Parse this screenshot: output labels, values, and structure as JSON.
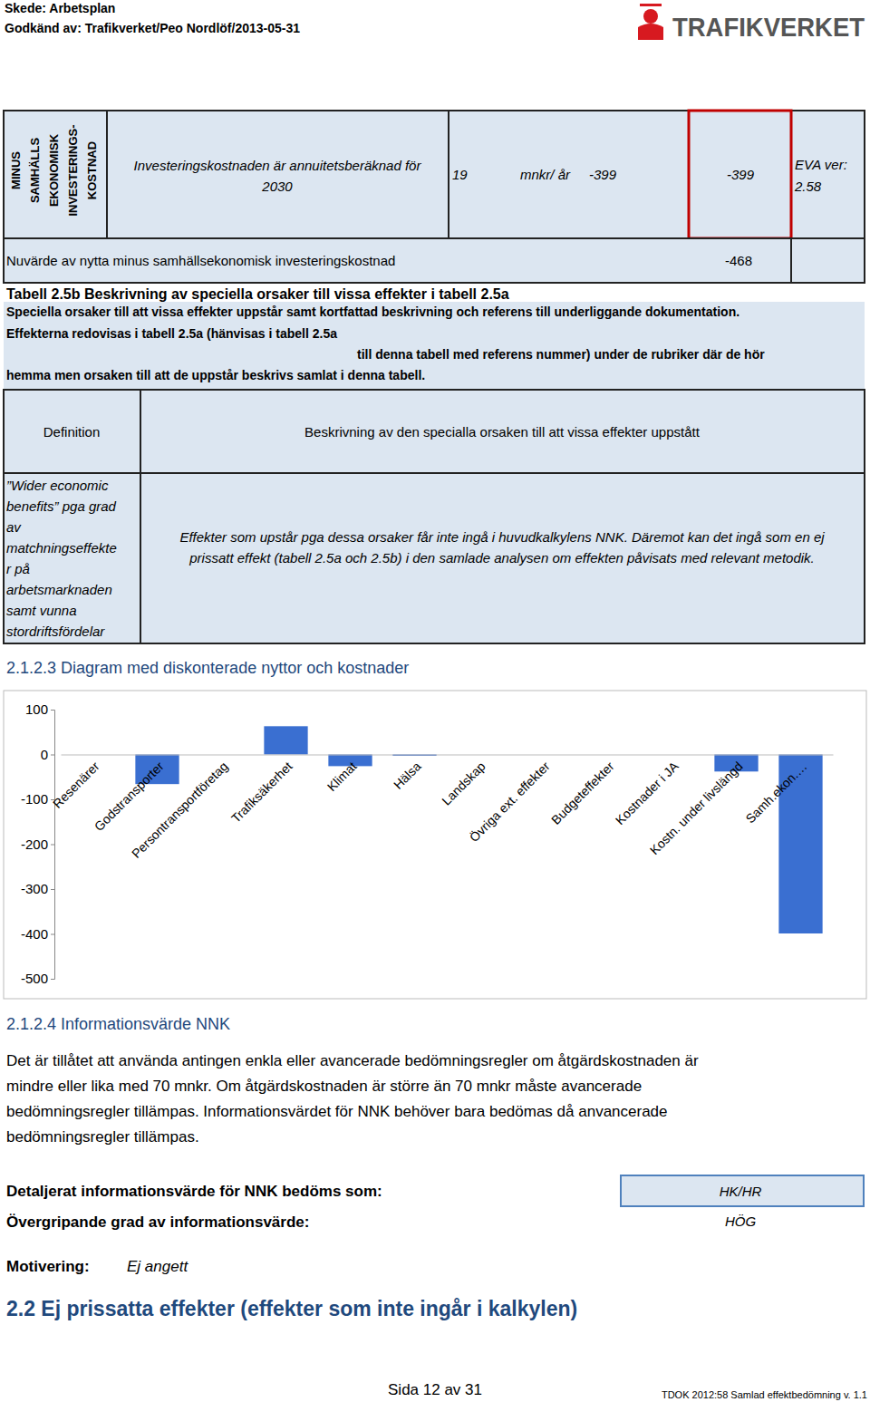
{
  "header": {
    "stage": "Skede: Arbetsplan",
    "approved": "Godkänd av: Trafikverket/Peo Nordlöf/2013-05-31",
    "logo": "TRAFIKVERKET"
  },
  "cost_table": {
    "label_lines": [
      "MINUS",
      "SAMHÄLLS",
      "EKONOMISK",
      "INVESTERINGS-",
      "KOSTNAD"
    ],
    "description_lines": [
      "Investeringskostnaden är annuitetsberäknad för",
      "2030"
    ],
    "amount": 19,
    "unit": "mnkr/ år",
    "value_1": -399,
    "value_2": -399,
    "version_lines": [
      "EVA ver:",
      "2.58"
    ],
    "npv_label": "Nuvärde av nytta minus samhällsekonomisk investeringskostnad",
    "npv_value": -468
  },
  "table_2_5b": {
    "title": "Tabell 2.5b Beskrivning av speciella orsaker till vissa effekter i tabell 2.5a",
    "intro_lines": [
      "Speciella orsaker till att vissa effekter uppstår samt kortfattad beskrivning och referens till underliggande dokumentation.",
      "Effekterna redovisas i tabell 2.5a (hänvisas i tabell 2.5a",
      "till denna tabell med referens nummer) under de rubriker där de hör",
      "hemma men orsaken till att de uppstår beskrivs samlat i denna tabell."
    ],
    "header": [
      "Definition",
      "Beskrivning av den specialla orsaken till att vissa effekter uppstått"
    ],
    "rows": [
      {
        "definition_lines": [
          "”Wider economic",
          "benefits” pga grad",
          "av",
          "matchningseffekte",
          "r på",
          "arbetsmarknaden",
          "samt vunna",
          "stordriftsfördelar"
        ],
        "description_lines": [
          "Effekter som upstår pga dessa orsaker får inte ingå i huvudkalkylens NNK. Däremot kan det ingå som en ej",
          "prissatt effekt (tabell 2.5a och 2.5b) i den samlade analysen om effekten påvisats med relevant metodik."
        ]
      }
    ]
  },
  "section_2_1_2_3": "2.1.2.3 Diagram med diskonterade nyttor och kostnader",
  "chart_data": {
    "type": "bar",
    "categories": [
      "Resenärer",
      "Godstransporter",
      "Persontransportföretag",
      "Trafiksäkerhet",
      "Klimat",
      "Hälsa",
      "Landskap",
      "Övriga ext. effekter",
      "Budgeteffekter",
      "Kostnader i JA",
      "Kostn. under livslängd",
      "Samh.ekon.…"
    ],
    "values": [
      0,
      -66,
      0,
      63,
      -26,
      -3,
      0,
      0,
      0,
      0,
      -38,
      -399
    ],
    "color": "#3a6fd1",
    "ylim": [
      -500,
      100
    ],
    "yticks": [
      -500,
      -400,
      -300,
      -200,
      -100,
      0,
      100
    ],
    "grid": false
  },
  "section_2_1_2_4": {
    "heading": "2.1.2.4 Informationsvärde NNK",
    "paragraph_lines": [
      "Det är tillåtet att använda antingen enkla eller avancerade bedömningsregler om åtgärdskostnaden är",
      "mindre eller lika med 70 mnkr. Om åtgärdskostnaden är större än 70 mnkr måste avancerade",
      "bedömningsregler tillämpas. Informationsvärdet för NNK behöver bara bedömas då anvancerade",
      "bedömningsregler tillämpas."
    ],
    "detail_label": "Detaljerat informationsvärde för NNK bedöms som:",
    "detail_value": "HK/HR",
    "overall_label": "Övergripande grad av informationsvärde:",
    "overall_value": "HÖG",
    "motivation_label": "Motivering:",
    "motivation_value": "Ej angett"
  },
  "section_2_2": "2.2 Ej prissatta effekter (effekter som inte ingår i kalkylen)",
  "footer": {
    "page": "Sida 12 av 31",
    "doc": "TDOK 2012:58 Samlad effektbedömning v. 1.1"
  }
}
